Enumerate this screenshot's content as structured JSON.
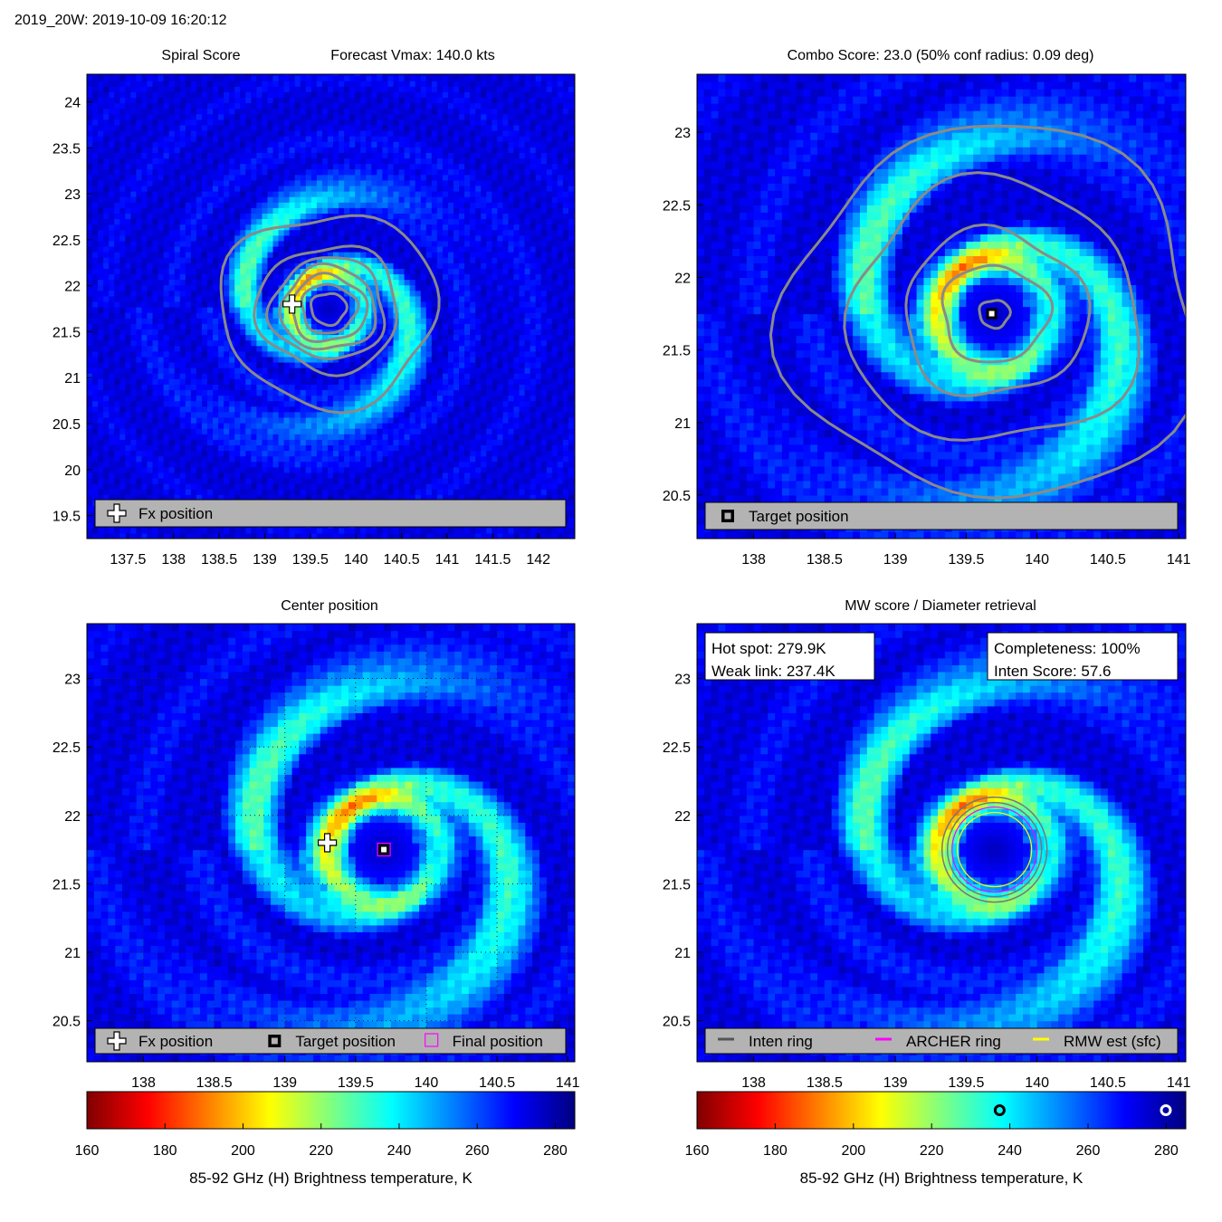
{
  "figure": {
    "main_title": "2019_20W: 2019-10-09 16:20:12"
  },
  "storm_center": {
    "lon": 139.7,
    "lat": 21.75
  },
  "colormap": {
    "name": "jet_reversed",
    "stops": [
      "#800000",
      "#ff0000",
      "#ff8000",
      "#ffff00",
      "#80ff80",
      "#00ffff",
      "#0080ff",
      "#0000ff",
      "#000080"
    ],
    "vmin": 160,
    "vmax": 285
  },
  "panels": [
    {
      "id": "spiral",
      "title_left": "Spiral Score",
      "title_right": "Forecast Vmax: 140.0 kts",
      "title": "",
      "legend": {
        "items": [
          {
            "label": "Fx position",
            "icon": "white-cross-icon"
          }
        ]
      }
    },
    {
      "id": "combo",
      "title": "Combo Score: 23.0  (50% conf radius: 0.09 deg)",
      "legend": {
        "items": [
          {
            "label": "Target position",
            "icon": "black-square-icon"
          }
        ]
      }
    },
    {
      "id": "center",
      "title": "Center position",
      "legend": {
        "items": [
          {
            "label": "Fx position",
            "icon": "white-cross-icon"
          },
          {
            "label": "Target position",
            "icon": "black-square-icon"
          },
          {
            "label": "Final position",
            "icon": "magenta-square-icon"
          }
        ]
      }
    },
    {
      "id": "mw",
      "title": "MW score / Diameter retrieval",
      "info_left": [
        "Hot spot: 279.9K",
        "Weak link: 237.4K"
      ],
      "info_right": [
        "Completeness: 100%",
        "Inten Score: 57.6"
      ],
      "legend": {
        "items": [
          {
            "label": "Inten ring",
            "color": "#555555"
          },
          {
            "label": "ARCHER ring",
            "color": "#ff00ff"
          },
          {
            "label": "RMW est (sfc)",
            "color": "#ffff00"
          }
        ]
      }
    }
  ],
  "chart_data": [
    {
      "type": "heatmap",
      "title": "Spiral Score  Forecast Vmax: 140.0 kts",
      "xlim": [
        137.05,
        142.4
      ],
      "ylim": [
        19.25,
        24.3
      ],
      "xticks": [
        137.5,
        138,
        138.5,
        139,
        139.5,
        140,
        140.5,
        141,
        141.5,
        142
      ],
      "yticks": [
        19.5,
        20,
        20.5,
        21,
        21.5,
        22,
        22.5,
        23,
        23.5,
        24
      ],
      "markers": [
        {
          "name": "Fx position",
          "lon": 139.3,
          "lat": 21.8
        }
      ],
      "contours": "spiral score contours (gray)"
    },
    {
      "type": "heatmap",
      "title": "Combo Score: 23.0  (50% conf radius: 0.09 deg)",
      "combo_score": 23.0,
      "conf_radius_deg": 0.09,
      "xlim": [
        137.6,
        141.05
      ],
      "ylim": [
        20.2,
        23.4
      ],
      "xticks": [
        138,
        138.5,
        139,
        139.5,
        140,
        140.5,
        141
      ],
      "yticks": [
        20.5,
        21,
        21.5,
        22,
        22.5,
        23
      ],
      "markers": [
        {
          "name": "Target position",
          "lon": 139.68,
          "lat": 21.75
        }
      ]
    },
    {
      "type": "heatmap",
      "title": "Center position",
      "xlim": [
        137.6,
        141.05
      ],
      "ylim": [
        20.2,
        23.4
      ],
      "xticks": [
        138,
        138.5,
        139,
        139.5,
        140,
        140.5,
        141
      ],
      "yticks": [
        20.5,
        21,
        21.5,
        22,
        22.5,
        23
      ],
      "markers": [
        {
          "name": "Fx position",
          "lon": 139.3,
          "lat": 21.8
        },
        {
          "name": "Target position",
          "lon": 139.7,
          "lat": 21.75
        },
        {
          "name": "Final position",
          "lon": 139.7,
          "lat": 21.75
        }
      ],
      "colorbar": {
        "xlabel": "85-92 GHz (H) Brightness temperature, K",
        "ticks": [
          160,
          180,
          200,
          220,
          240,
          260,
          280
        ],
        "range": [
          160,
          285
        ]
      }
    },
    {
      "type": "heatmap",
      "title": "MW score / Diameter retrieval",
      "hot_spot_K": 279.9,
      "weak_link_K": 237.4,
      "completeness_pct": 100,
      "inten_score": 57.6,
      "xlim": [
        137.6,
        141.05
      ],
      "ylim": [
        20.2,
        23.4
      ],
      "xticks": [
        138,
        138.5,
        139,
        139.5,
        140,
        140.5,
        141
      ],
      "yticks": [
        20.5,
        21,
        21.5,
        22,
        22.5,
        23
      ],
      "rings": [
        "Inten ring",
        "ARCHER ring",
        "RMW est (sfc)"
      ],
      "colorbar": {
        "xlabel": "85-92 GHz (H) Brightness temperature, K",
        "ticks": [
          160,
          180,
          200,
          220,
          240,
          260,
          280
        ],
        "range": [
          160,
          285
        ],
        "markers_K": [
          237.4,
          279.9
        ]
      }
    }
  ]
}
